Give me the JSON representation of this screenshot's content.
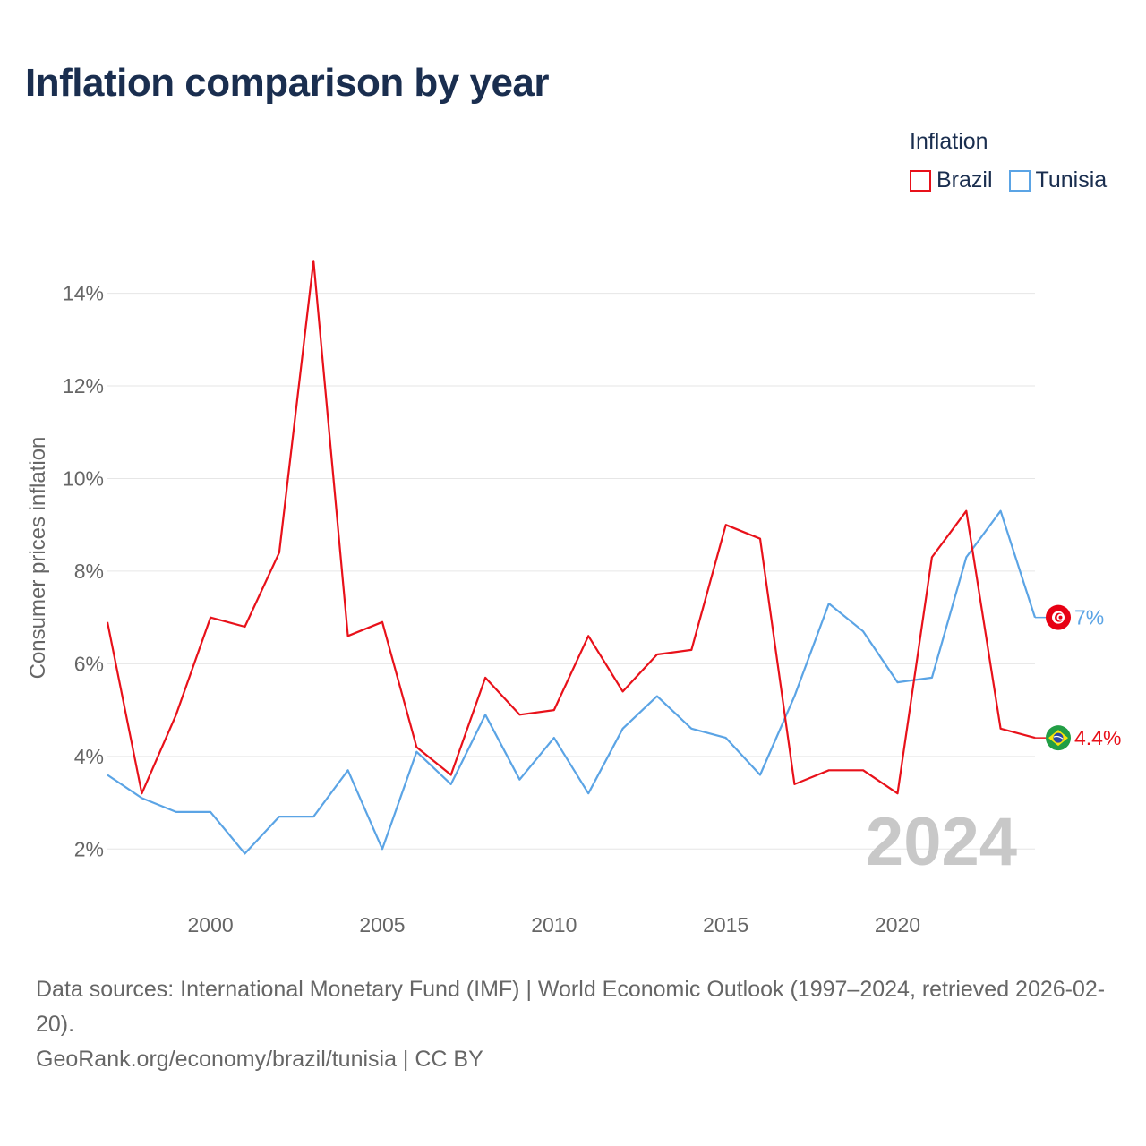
{
  "title": "Inflation comparison by year",
  "legend": {
    "title": "Inflation"
  },
  "big_year": "2024",
  "source": {
    "line1": "Data sources: International Monetary Fund (IMF) | World Economic Outlook (1997–2024, retrieved 2026-02-20).",
    "line2": "GeoRank.org/economy/brazil/tunisia | CC BY"
  },
  "chart_data": {
    "type": "line",
    "title": "Inflation comparison by year",
    "ylabel": "Consumer prices inflation",
    "xlabel": "",
    "xlim": [
      1997,
      2024
    ],
    "ylim": [
      1,
      15.5
    ],
    "x": [
      1997,
      1998,
      1999,
      2000,
      2001,
      2002,
      2003,
      2004,
      2005,
      2006,
      2007,
      2008,
      2009,
      2010,
      2011,
      2012,
      2013,
      2014,
      2015,
      2016,
      2017,
      2018,
      2019,
      2020,
      2021,
      2022,
      2023,
      2024
    ],
    "x_ticks": [
      2000,
      2005,
      2010,
      2015,
      2020
    ],
    "y_ticks": [
      {
        "value": 2,
        "label": "2%"
      },
      {
        "value": 4,
        "label": "4%"
      },
      {
        "value": 6,
        "label": "6%"
      },
      {
        "value": 8,
        "label": "8%"
      },
      {
        "value": 10,
        "label": "10%"
      },
      {
        "value": 12,
        "label": "12%"
      },
      {
        "value": 14,
        "label": "14%"
      }
    ],
    "series": [
      {
        "name": "Brazil",
        "color": "#e8111a",
        "end_label": "4.4%",
        "flag_icon": "brazil-flag-icon",
        "values": [
          6.9,
          3.2,
          4.9,
          7.0,
          6.8,
          8.4,
          14.7,
          6.6,
          6.9,
          4.2,
          3.6,
          5.7,
          4.9,
          5.0,
          6.6,
          5.4,
          6.2,
          6.3,
          9.0,
          8.7,
          3.4,
          3.7,
          3.7,
          3.2,
          8.3,
          9.3,
          4.6,
          4.4
        ]
      },
      {
        "name": "Tunisia",
        "color": "#5ba4e5",
        "end_label": "7%",
        "flag_icon": "tunisia-flag-icon",
        "values": [
          3.6,
          3.1,
          2.8,
          2.8,
          1.9,
          2.7,
          2.7,
          3.7,
          2.0,
          4.1,
          3.4,
          4.9,
          3.5,
          4.4,
          3.2,
          4.6,
          5.3,
          4.6,
          4.4,
          3.6,
          5.3,
          7.3,
          6.7,
          5.6,
          5.7,
          8.3,
          9.3,
          7.0
        ]
      }
    ]
  }
}
